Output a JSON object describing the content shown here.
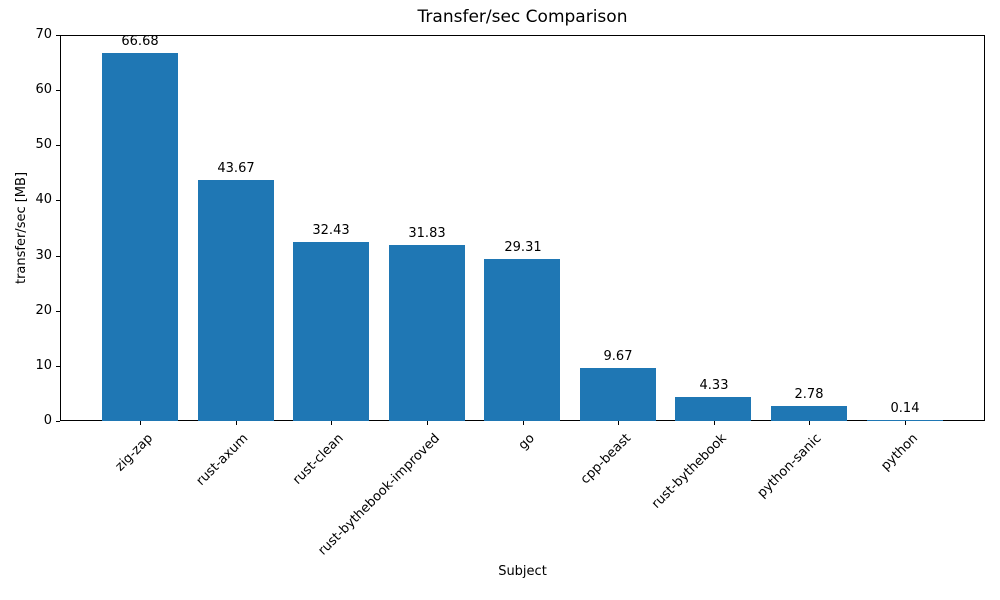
{
  "chart_data": {
    "type": "bar",
    "title": "Transfer/sec Comparison",
    "xlabel": "Subject",
    "ylabel": "transfer/sec [MB]",
    "categories": [
      "zig-zap",
      "rust-axum",
      "rust-clean",
      "rust-bythebook-improved",
      "go",
      "cpp-beast",
      "rust-bythebook",
      "python-sanic",
      "python"
    ],
    "values": [
      66.68,
      43.67,
      32.43,
      31.83,
      29.31,
      9.67,
      4.33,
      2.78,
      0.14
    ],
    "value_labels": [
      "66.68",
      "43.67",
      "32.43",
      "31.83",
      "29.31",
      "9.67",
      "4.33",
      "2.78",
      "0.14"
    ],
    "ylim": [
      0,
      70
    ],
    "yticks": [
      0,
      10,
      20,
      30,
      40,
      50,
      60,
      70
    ],
    "bar_color": "#1f77b4",
    "grid": false,
    "legend_position": "none",
    "x_tick_rotation_deg": 45
  }
}
